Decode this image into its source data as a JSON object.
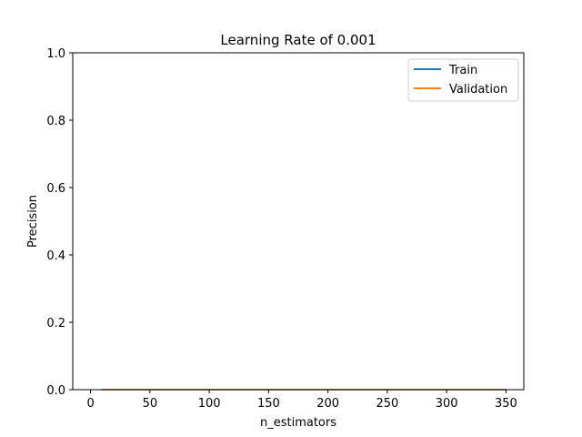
{
  "chart_data": {
    "type": "line",
    "title": "Learning Rate of 0.001",
    "xlabel": "n_estimators",
    "ylabel": "Precision",
    "xlim": [
      -15,
      365
    ],
    "ylim": [
      0.0,
      1.0
    ],
    "x_ticks": [
      "0",
      "50",
      "100",
      "150",
      "200",
      "250",
      "300",
      "350"
    ],
    "y_ticks": [
      "0.0",
      "0.2",
      "0.4",
      "0.6",
      "0.8",
      "1.0"
    ],
    "x": [
      10,
      50,
      100,
      150,
      200,
      250,
      300,
      350
    ],
    "series": [
      {
        "name": "Train",
        "color": "#1f77b4",
        "values": [
          0,
          0,
          0,
          0,
          0,
          0,
          0,
          0
        ]
      },
      {
        "name": "Validation",
        "color": "#ff7f0e",
        "values": [
          0,
          0,
          0,
          0,
          0,
          0,
          0,
          0
        ]
      }
    ],
    "legend_position": "top-right",
    "grid": false
  }
}
